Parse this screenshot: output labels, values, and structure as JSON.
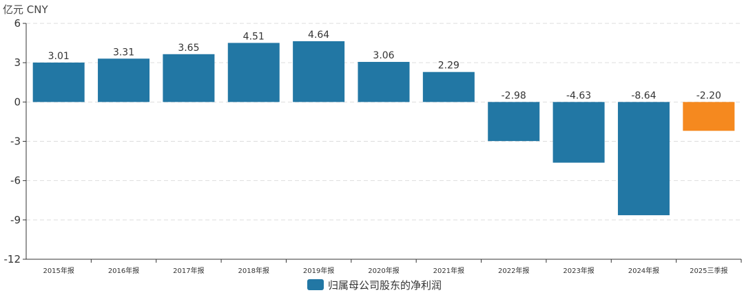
{
  "unit_label": "亿元  CNY",
  "chart_data": {
    "type": "bar",
    "categories": [
      "2015年报",
      "2016年报",
      "2017年报",
      "2018年报",
      "2019年报",
      "2020年报",
      "2021年报",
      "2022年报",
      "2023年报",
      "2024年报",
      "2025三季报"
    ],
    "series": [
      {
        "name": "归属母公司股东的净利润",
        "values": [
          3.01,
          3.31,
          3.65,
          4.51,
          4.64,
          3.06,
          2.29,
          -2.98,
          -4.63,
          -8.64,
          -2.2
        ],
        "value_labels": [
          "3.01",
          "3.31",
          "3.65",
          "4.51",
          "4.64",
          "3.06",
          "2.29",
          "-2.98",
          "-4.63",
          "-8.64",
          "-2.20"
        ]
      }
    ],
    "ylim": [
      -12,
      6
    ],
    "yticks": [
      6,
      3,
      0,
      -3,
      -6,
      -9,
      -12
    ],
    "grid": true,
    "legend": "bottom-center",
    "colors": {
      "default": "#2277a4",
      "highlight": "#f5891f",
      "highlight_index": 10
    }
  }
}
